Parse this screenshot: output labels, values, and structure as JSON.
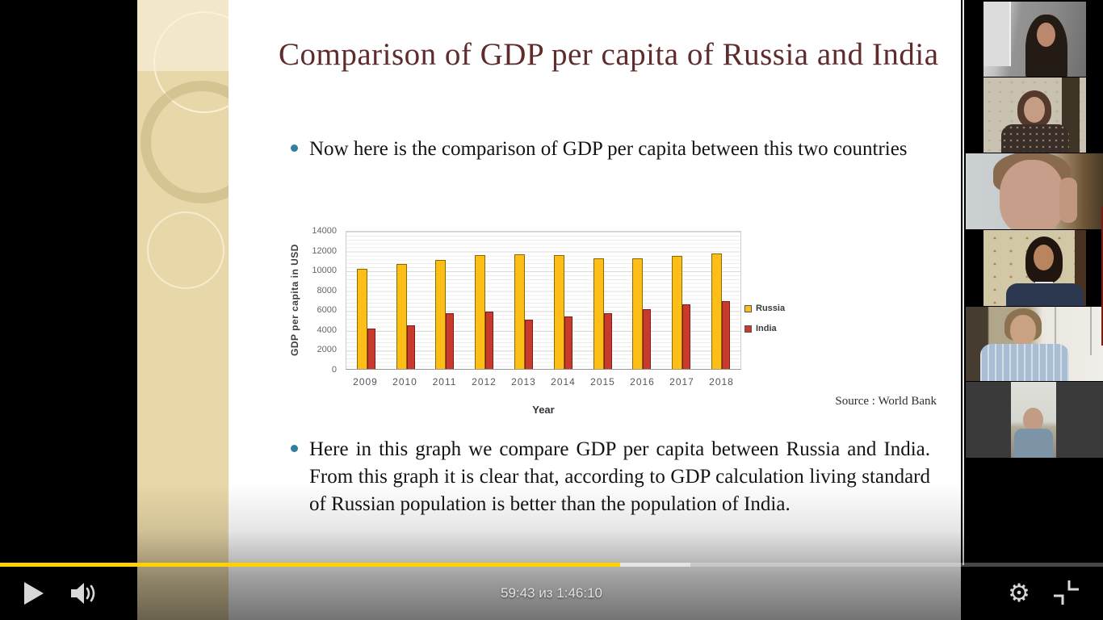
{
  "player": {
    "time_display": "59:43 из 1:46:10",
    "current_time": "59:43",
    "of_word": "из",
    "total_time": "1:46:10",
    "progress_percent": 56.2,
    "buffer_percent": 62.6,
    "accent_color": "#ffd200"
  },
  "slide": {
    "title": "Comparison of GDP per capita of Russia and India",
    "title_color": "#5e2c2c",
    "bullet1": "Now here is the comparison of GDP per capita between this two countries",
    "bullet2": "Here in this graph we compare GDP per capita between Russia and India. From this graph it is clear that, according to GDP calculation living standard of Russian population is better than the population of India.",
    "source_note": "Source : World Bank"
  },
  "chart_data": {
    "type": "bar",
    "title": "",
    "xlabel": "Year",
    "ylabel": "GDP per capita in USD",
    "categories": [
      "2009",
      "2010",
      "2011",
      "2012",
      "2013",
      "2014",
      "2015",
      "2016",
      "2017",
      "2018"
    ],
    "series": [
      {
        "name": "Russia",
        "color": "#fdbf17",
        "values": [
          10100,
          10600,
          11000,
          11450,
          11600,
          11450,
          11150,
          11150,
          11400,
          11650
        ]
      },
      {
        "name": "India",
        "color": "#c83a2b",
        "values": [
          4100,
          4400,
          5600,
          5750,
          4950,
          5300,
          5600,
          6050,
          6500,
          6800
        ]
      }
    ],
    "ylim": [
      0,
      14000
    ],
    "ytick_step": 2000,
    "grid": true,
    "legend_position": "right"
  },
  "sidebar": {
    "participant_count": 6
  }
}
